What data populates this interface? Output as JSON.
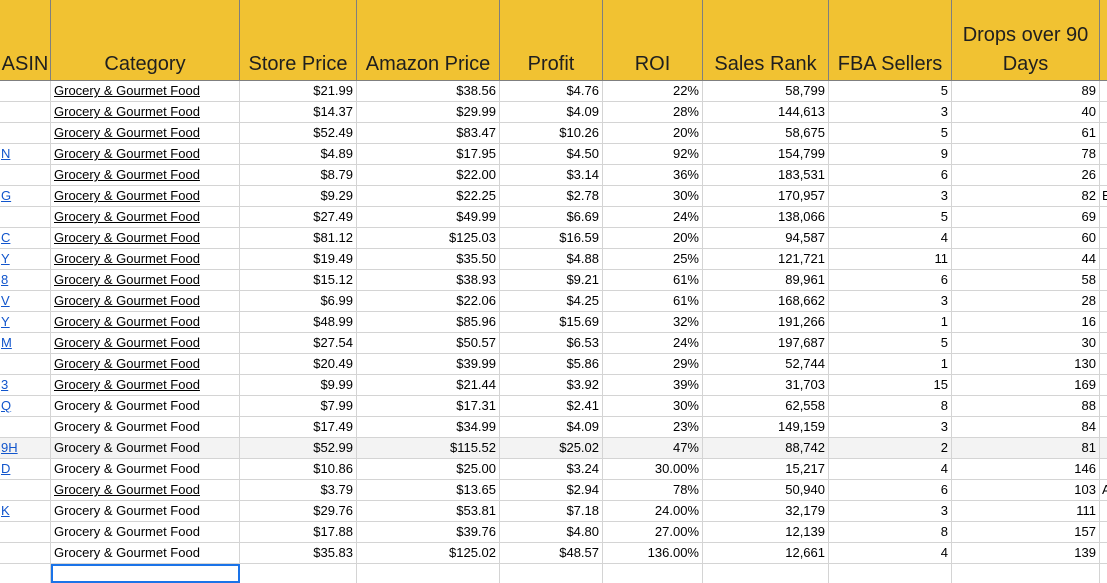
{
  "headers": {
    "asin": "ASIN",
    "category": "Category",
    "store_price": "Store Price",
    "amazon_price": "Amazon Price",
    "profit": "Profit",
    "roi": "ROI",
    "sales_rank": "Sales Rank",
    "fba_sellers": "FBA Sellers",
    "drops_line1": "Drops over 90",
    "drops_line2": "Days"
  },
  "rows": [
    {
      "asin": "",
      "category": "Grocery & Gourmet Food",
      "link": true,
      "store": "$21.99",
      "amazon": "$38.56",
      "profit": "$4.76",
      "roi": "22%",
      "rank": "58,799",
      "fba": "5",
      "drops": "89",
      "extra": ""
    },
    {
      "asin": "",
      "category": "Grocery & Gourmet Food",
      "link": true,
      "store": "$14.37",
      "amazon": "$29.99",
      "profit": "$4.09",
      "roi": "28%",
      "rank": "144,613",
      "fba": "3",
      "drops": "40",
      "extra": ""
    },
    {
      "asin": "",
      "category": "Grocery & Gourmet Food",
      "link": true,
      "store": "$52.49",
      "amazon": "$83.47",
      "profit": "$10.26",
      "roi": "20%",
      "rank": "58,675",
      "fba": "5",
      "drops": "61",
      "extra": ""
    },
    {
      "asin": "N",
      "category": "Grocery & Gourmet Food",
      "link": true,
      "store": "$4.89",
      "amazon": "$17.95",
      "profit": "$4.50",
      "roi": "92%",
      "rank": "154,799",
      "fba": "9",
      "drops": "78",
      "extra": ""
    },
    {
      "asin": "",
      "category": "Grocery & Gourmet Food",
      "link": true,
      "store": "$8.79",
      "amazon": "$22.00",
      "profit": "$3.14",
      "roi": "36%",
      "rank": "183,531",
      "fba": "6",
      "drops": "26",
      "extra": ""
    },
    {
      "asin": "G",
      "category": "Grocery & Gourmet Food",
      "link": true,
      "store": "$9.29",
      "amazon": "$22.25",
      "profit": "$2.78",
      "roi": "30%",
      "rank": "170,957",
      "fba": "3",
      "drops": "82",
      "extra": "E"
    },
    {
      "asin": "",
      "category": "Grocery & Gourmet Food",
      "link": true,
      "store": "$27.49",
      "amazon": "$49.99",
      "profit": "$6.69",
      "roi": "24%",
      "rank": "138,066",
      "fba": "5",
      "drops": "69",
      "extra": ""
    },
    {
      "asin": "C",
      "category": "Grocery & Gourmet Food",
      "link": true,
      "store": "$81.12",
      "amazon": "$125.03",
      "profit": "$16.59",
      "roi": "20%",
      "rank": "94,587",
      "fba": "4",
      "drops": "60",
      "extra": ""
    },
    {
      "asin": "Y",
      "category": "Grocery & Gourmet Food",
      "link": true,
      "store": "$19.49",
      "amazon": "$35.50",
      "profit": "$4.88",
      "roi": "25%",
      "rank": "121,721",
      "fba": "11",
      "drops": "44",
      "extra": ""
    },
    {
      "asin": "8",
      "category": "Grocery & Gourmet Food",
      "link": true,
      "store": "$15.12",
      "amazon": "$38.93",
      "profit": "$9.21",
      "roi": "61%",
      "rank": "89,961",
      "fba": "6",
      "drops": "58",
      "extra": ""
    },
    {
      "asin": "V",
      "category": "Grocery & Gourmet Food",
      "link": true,
      "store": "$6.99",
      "amazon": "$22.06",
      "profit": "$4.25",
      "roi": "61%",
      "rank": "168,662",
      "fba": "3",
      "drops": "28",
      "extra": ""
    },
    {
      "asin": "Y",
      "category": "Grocery & Gourmet Food",
      "link": true,
      "store": "$48.99",
      "amazon": "$85.96",
      "profit": "$15.69",
      "roi": "32%",
      "rank": "191,266",
      "fba": "1",
      "drops": "16",
      "extra": ""
    },
    {
      "asin": "M",
      "category": "Grocery & Gourmet Food",
      "link": true,
      "store": "$27.54",
      "amazon": "$50.57",
      "profit": "$6.53",
      "roi": "24%",
      "rank": "197,687",
      "fba": "5",
      "drops": "30",
      "extra": ""
    },
    {
      "asin": "",
      "category": "Grocery & Gourmet Food",
      "link": true,
      "store": "$20.49",
      "amazon": "$39.99",
      "profit": "$5.86",
      "roi": "29%",
      "rank": "52,744",
      "fba": "1",
      "drops": "130",
      "extra": ""
    },
    {
      "asin": "3",
      "category": "Grocery & Gourmet Food",
      "link": true,
      "store": "$9.99",
      "amazon": "$21.44",
      "profit": "$3.92",
      "roi": "39%",
      "rank": "31,703",
      "fba": "15",
      "drops": "169",
      "extra": ""
    },
    {
      "asin": "Q",
      "category": "Grocery & Gourmet Food",
      "link": false,
      "store": "$7.99",
      "amazon": "$17.31",
      "profit": "$2.41",
      "roi": "30%",
      "rank": "62,558",
      "fba": "8",
      "drops": "88",
      "extra": ""
    },
    {
      "asin": "",
      "category": "Grocery & Gourmet Food",
      "link": false,
      "store": "$17.49",
      "amazon": "$34.99",
      "profit": "$4.09",
      "roi": "23%",
      "rank": "149,159",
      "fba": "3",
      "drops": "84",
      "extra": ""
    },
    {
      "asin": "9H",
      "category": "Grocery & Gourmet Food",
      "link": false,
      "store": "$52.99",
      "amazon": "$115.52",
      "profit": "$25.02",
      "roi": "47%",
      "rank": "88,742",
      "fba": "2",
      "drops": "81",
      "extra": "",
      "highlight": true
    },
    {
      "asin": "D",
      "category": "Grocery & Gourmet Food",
      "link": false,
      "store": "$10.86",
      "amazon": "$25.00",
      "profit": "$3.24",
      "roi": "30.00%",
      "rank": "15,217",
      "fba": "4",
      "drops": "146",
      "extra": ""
    },
    {
      "asin": "",
      "category": "Grocery & Gourmet Food",
      "link": true,
      "store": "$3.79",
      "amazon": "$13.65",
      "profit": "$2.94",
      "roi": "78%",
      "rank": "50,940",
      "fba": "6",
      "drops": "103",
      "extra": "A"
    },
    {
      "asin": "K",
      "category": "Grocery & Gourmet Food",
      "link": false,
      "store": "$29.76",
      "amazon": "$53.81",
      "profit": "$7.18",
      "roi": "24.00%",
      "rank": "32,179",
      "fba": "3",
      "drops": "111",
      "extra": ""
    },
    {
      "asin": "",
      "category": "Grocery & Gourmet Food",
      "link": false,
      "store": "$17.88",
      "amazon": "$39.76",
      "profit": "$4.80",
      "roi": "27.00%",
      "rank": "12,139",
      "fba": "8",
      "drops": "157",
      "extra": ""
    },
    {
      "asin": "",
      "category": "Grocery & Gourmet Food",
      "link": false,
      "store": "$35.83",
      "amazon": "$125.02",
      "profit": "$48.57",
      "roi": "136.00%",
      "rank": "12,661",
      "fba": "4",
      "drops": "139",
      "extra": ""
    }
  ],
  "colors": {
    "header_bg": "#f1c232",
    "link": "#1155cc",
    "selection": "#1a73e8"
  }
}
